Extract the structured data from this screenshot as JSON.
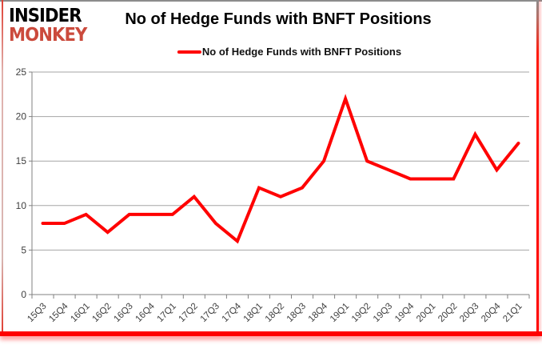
{
  "logo": {
    "line1": "INSIDER",
    "line2": "MONKEY",
    "line2_color": "#cb4a3c"
  },
  "header": {
    "title": "No of Hedge Funds with BNFT Positions"
  },
  "legend": {
    "label": "No of Hedge Funds with BNFT Positions",
    "swatch_color": "#ff0000"
  },
  "chart_data": {
    "type": "line",
    "title": "No of Hedge Funds with BNFT Positions",
    "categories": [
      "15Q3",
      "15Q4",
      "16Q1",
      "16Q2",
      "16Q3",
      "16Q4",
      "17Q1",
      "17Q2",
      "17Q3",
      "17Q4",
      "18Q1",
      "18Q2",
      "18Q3",
      "18Q4",
      "19Q1",
      "19Q2",
      "19Q3",
      "19Q4",
      "20Q1",
      "20Q2",
      "20Q3",
      "20Q4",
      "21Q1"
    ],
    "values": [
      8,
      8,
      9,
      7,
      9,
      9,
      9,
      11,
      8,
      6,
      12,
      11,
      12,
      15,
      22,
      15,
      14,
      13,
      13,
      13,
      18,
      14,
      17
    ],
    "series_name": "No of Hedge Funds with BNFT Positions",
    "ylim": [
      0,
      25
    ],
    "yticks": [
      0,
      5,
      10,
      15,
      20,
      25
    ],
    "grid": true,
    "legend_position": "top",
    "line_color": "#ff0000",
    "gridline_color": "#a6a6a6",
    "axis_color": "#808080",
    "tick_label_color": "#404040"
  }
}
